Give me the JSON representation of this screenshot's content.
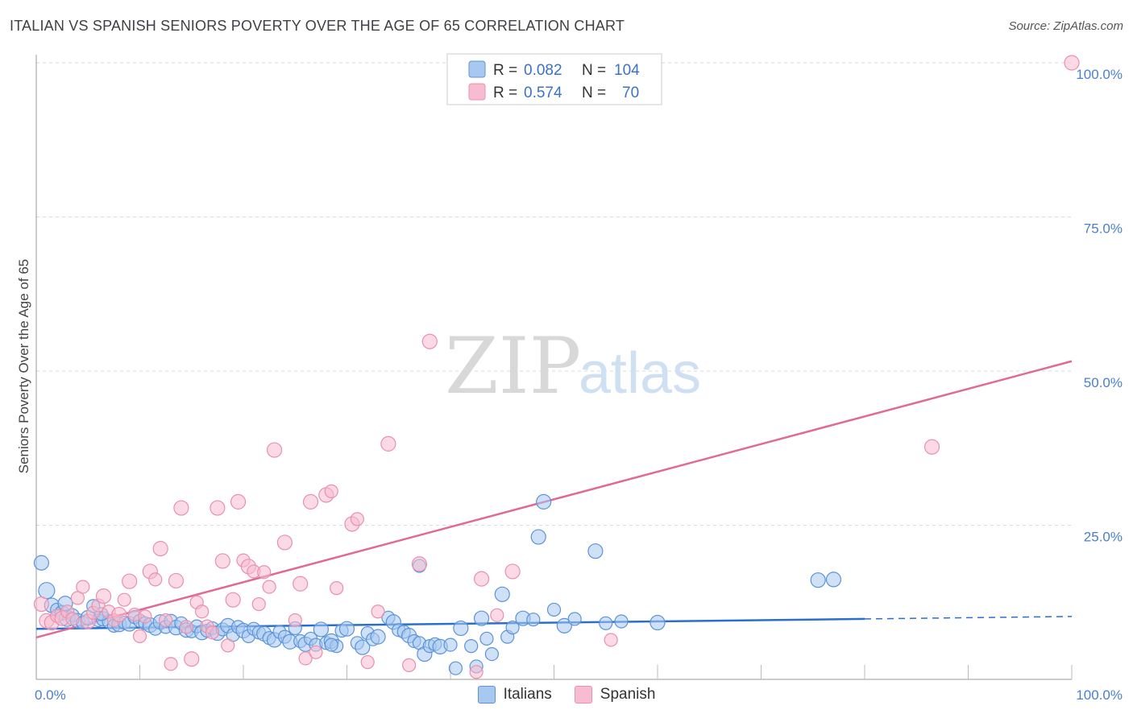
{
  "title": "ITALIAN VS SPANISH SENIORS POVERTY OVER THE AGE OF 65 CORRELATION CHART",
  "source": "Source: ZipAtlas.com",
  "watermark": {
    "zip": "ZIP",
    "atlas": "atlas"
  },
  "colors": {
    "italians_fill": "#a8c8f0",
    "italians_stroke": "#5b93d8",
    "italians_line": "#2a6fd0",
    "spanish_fill": "#f8bcd0",
    "spanish_stroke": "#e890ac",
    "spanish_line": "#e06a95",
    "axis_text": "#4a7fd0",
    "grid": "#d9d9d9"
  },
  "legend": {
    "rows": [
      {
        "r_label": "R =",
        "r_value": "0.082",
        "n_label": "N =",
        "n_value": "104"
      },
      {
        "r_label": "R =",
        "r_value": "0.574",
        "n_label": "N =",
        "n_value": "70"
      }
    ]
  },
  "bottom_legend": [
    "Italians",
    "Spanish"
  ],
  "chart_data": {
    "type": "scatter",
    "xlabel": "",
    "ylabel": "Seniors Poverty Over the Age of 65",
    "xlim": [
      0,
      100
    ],
    "ylim": [
      0,
      100
    ],
    "x_tick_labels": [
      "0.0%",
      "100.0%"
    ],
    "y_ticks": [
      25,
      50,
      75,
      100
    ],
    "y_tick_labels": [
      "25.0%",
      "50.0%",
      "75.0%",
      "100.0%"
    ],
    "series": [
      {
        "name": "Italians",
        "r": 0.082,
        "n": 104,
        "trend": {
          "x0": 0,
          "y0": 8.2,
          "x1": 80,
          "y1": 9.8,
          "dash_x1": 100,
          "dash_y1": 10.2
        },
        "points": [
          [
            0.5,
            18.9,
            9
          ],
          [
            1.0,
            14.4,
            10
          ],
          [
            1.5,
            12.0,
            9
          ],
          [
            2.0,
            11.3,
            8
          ],
          [
            2.5,
            10.8,
            9
          ],
          [
            3.0,
            9.9,
            10
          ],
          [
            3.5,
            10.4,
            8
          ],
          [
            4.0,
            9.5,
            9
          ],
          [
            4.5,
            9.2,
            8
          ],
          [
            5.0,
            10.0,
            9
          ],
          [
            5.5,
            11.9,
            8
          ],
          [
            6.0,
            9.6,
            8
          ],
          [
            6.5,
            9.8,
            9
          ],
          [
            7.0,
            9.4,
            8
          ],
          [
            7.5,
            8.7,
            8
          ],
          [
            8.0,
            8.9,
            9
          ],
          [
            8.5,
            9.2,
            8
          ],
          [
            9.0,
            9.0,
            9
          ],
          [
            9.5,
            10.1,
            8
          ],
          [
            10.0,
            9.5,
            8
          ],
          [
            10.5,
            9.1,
            8
          ],
          [
            11.0,
            8.8,
            9
          ],
          [
            11.5,
            8.2,
            8
          ],
          [
            12.0,
            9.3,
            9
          ],
          [
            12.5,
            8.5,
            8
          ],
          [
            13.0,
            9.5,
            8
          ],
          [
            13.5,
            8.4,
            9
          ],
          [
            14.0,
            9.1,
            8
          ],
          [
            14.5,
            8.0,
            9
          ],
          [
            15.0,
            7.8,
            8
          ],
          [
            15.5,
            8.6,
            8
          ],
          [
            16.0,
            7.6,
            9
          ],
          [
            16.5,
            7.9,
            8
          ],
          [
            17.0,
            8.3,
            8
          ],
          [
            17.5,
            7.5,
            9
          ],
          [
            18.0,
            8.1,
            8
          ],
          [
            18.5,
            8.7,
            9
          ],
          [
            19.0,
            7.2,
            8
          ],
          [
            19.5,
            8.5,
            8
          ],
          [
            20.0,
            7.9,
            9
          ],
          [
            20.5,
            7.0,
            8
          ],
          [
            21.0,
            8.2,
            8
          ],
          [
            21.5,
            7.6,
            8
          ],
          [
            22.0,
            7.4,
            9
          ],
          [
            22.5,
            6.7,
            8
          ],
          [
            23.0,
            6.4,
            9
          ],
          [
            23.5,
            7.7,
            8
          ],
          [
            24.0,
            6.9,
            8
          ],
          [
            24.5,
            6.1,
            9
          ],
          [
            25.0,
            8.3,
            8
          ],
          [
            25.5,
            6.2,
            8
          ],
          [
            26.0,
            5.7,
            9
          ],
          [
            26.5,
            6.6,
            8
          ],
          [
            27.0,
            5.6,
            8
          ],
          [
            27.5,
            8.1,
            9
          ],
          [
            28.0,
            5.9,
            8
          ],
          [
            28.5,
            6.2,
            9
          ],
          [
            29.0,
            5.4,
            8
          ],
          [
            29.5,
            7.9,
            8
          ],
          [
            30.0,
            8.2,
            9
          ],
          [
            31.0,
            5.9,
            8
          ],
          [
            31.5,
            5.2,
            9
          ],
          [
            32.0,
            7.5,
            8
          ],
          [
            32.5,
            6.5,
            8
          ],
          [
            33.0,
            6.9,
            9
          ],
          [
            34.0,
            10.0,
            8
          ],
          [
            34.5,
            9.3,
            9
          ],
          [
            35.0,
            8.0,
            8
          ],
          [
            35.5,
            7.7,
            8
          ],
          [
            36.0,
            7.1,
            9
          ],
          [
            36.5,
            6.2,
            8
          ],
          [
            37.0,
            5.9,
            8
          ],
          [
            37.5,
            4.1,
            9
          ],
          [
            38.0,
            5.4,
            8
          ],
          [
            38.5,
            5.7,
            8
          ],
          [
            39.0,
            5.3,
            9
          ],
          [
            40.0,
            5.6,
            8
          ],
          [
            40.5,
            1.8,
            8
          ],
          [
            41.0,
            8.3,
            9
          ],
          [
            42.0,
            5.4,
            8
          ],
          [
            42.5,
            2.1,
            8
          ],
          [
            43.0,
            9.9,
            9
          ],
          [
            43.5,
            6.6,
            8
          ],
          [
            44.0,
            4.1,
            8
          ],
          [
            45.0,
            13.8,
            9
          ],
          [
            45.5,
            6.9,
            8
          ],
          [
            46.0,
            8.4,
            8
          ],
          [
            47.0,
            9.9,
            9
          ],
          [
            48.0,
            9.7,
            8
          ],
          [
            48.5,
            23.1,
            9
          ],
          [
            49.0,
            28.8,
            9
          ],
          [
            50.0,
            11.3,
            8
          ],
          [
            51.0,
            8.7,
            9
          ],
          [
            52.0,
            9.8,
            8
          ],
          [
            54.0,
            20.8,
            9
          ],
          [
            55.0,
            9.1,
            8
          ],
          [
            56.5,
            9.4,
            8
          ],
          [
            60.0,
            9.2,
            9
          ],
          [
            75.5,
            16.1,
            9
          ],
          [
            77.0,
            16.2,
            9
          ],
          [
            37.0,
            18.4,
            8
          ],
          [
            28.5,
            5.6,
            8
          ],
          [
            2.8,
            12.3,
            9
          ],
          [
            6.3,
            10.6,
            8
          ]
        ]
      },
      {
        "name": "Spanish",
        "r": 0.574,
        "n": 70,
        "trend": {
          "x0": 0,
          "y0": 6.8,
          "x1": 100,
          "y1": 51.6
        },
        "points": [
          [
            0.5,
            12.2,
            9
          ],
          [
            1.0,
            9.5,
            9
          ],
          [
            1.5,
            9.2,
            9
          ],
          [
            2.0,
            10.3,
            8
          ],
          [
            2.5,
            9.9,
            9
          ],
          [
            3.0,
            11.0,
            8
          ],
          [
            3.5,
            9.8,
            8
          ],
          [
            4.0,
            13.2,
            8
          ],
          [
            4.5,
            15.0,
            8
          ],
          [
            5.0,
            9.4,
            9
          ],
          [
            5.5,
            10.8,
            8
          ],
          [
            6.0,
            12.0,
            8
          ],
          [
            6.5,
            13.5,
            9
          ],
          [
            7.0,
            11.0,
            8
          ],
          [
            7.5,
            9.6,
            8
          ],
          [
            8.0,
            10.5,
            9
          ],
          [
            8.5,
            12.9,
            8
          ],
          [
            9.0,
            15.9,
            9
          ],
          [
            9.5,
            10.5,
            8
          ],
          [
            10.0,
            7.0,
            8
          ],
          [
            10.5,
            10.2,
            8
          ],
          [
            11.0,
            17.5,
            9
          ],
          [
            11.5,
            16.2,
            8
          ],
          [
            12.0,
            21.2,
            9
          ],
          [
            12.5,
            9.6,
            8
          ],
          [
            13.0,
            2.5,
            8
          ],
          [
            13.5,
            16.0,
            9
          ],
          [
            14.0,
            27.8,
            9
          ],
          [
            14.5,
            8.5,
            8
          ],
          [
            15.0,
            3.3,
            9
          ],
          [
            15.5,
            12.5,
            8
          ],
          [
            16.0,
            11.0,
            8
          ],
          [
            16.5,
            8.6,
            8
          ],
          [
            17.0,
            7.6,
            8
          ],
          [
            17.5,
            27.8,
            9
          ],
          [
            18.0,
            19.2,
            9
          ],
          [
            18.5,
            5.5,
            8
          ],
          [
            19.0,
            12.9,
            9
          ],
          [
            19.5,
            28.8,
            9
          ],
          [
            20.0,
            19.3,
            8
          ],
          [
            20.5,
            18.3,
            9
          ],
          [
            21.0,
            17.5,
            8
          ],
          [
            21.5,
            12.2,
            8
          ],
          [
            22.0,
            17.4,
            8
          ],
          [
            22.5,
            15.0,
            8
          ],
          [
            23.0,
            37.2,
            9
          ],
          [
            24.0,
            22.2,
            9
          ],
          [
            25.0,
            9.6,
            8
          ],
          [
            25.5,
            15.5,
            9
          ],
          [
            26.0,
            3.4,
            8
          ],
          [
            26.5,
            28.8,
            9
          ],
          [
            27.0,
            4.4,
            8
          ],
          [
            28.0,
            29.9,
            9
          ],
          [
            28.5,
            30.5,
            8
          ],
          [
            29.0,
            14.8,
            8
          ],
          [
            30.5,
            25.2,
            9
          ],
          [
            31.0,
            26.0,
            8
          ],
          [
            32.0,
            2.8,
            8
          ],
          [
            33.0,
            11.0,
            8
          ],
          [
            34.0,
            38.2,
            9
          ],
          [
            36.0,
            2.3,
            8
          ],
          [
            37.0,
            18.7,
            9
          ],
          [
            38.0,
            54.8,
            9
          ],
          [
            42.5,
            1.2,
            8
          ],
          [
            43.0,
            16.3,
            9
          ],
          [
            44.5,
            10.4,
            8
          ],
          [
            46.0,
            17.5,
            9
          ],
          [
            55.5,
            6.4,
            8
          ],
          [
            86.5,
            37.7,
            9
          ],
          [
            100.0,
            100.0,
            9
          ]
        ]
      }
    ]
  }
}
